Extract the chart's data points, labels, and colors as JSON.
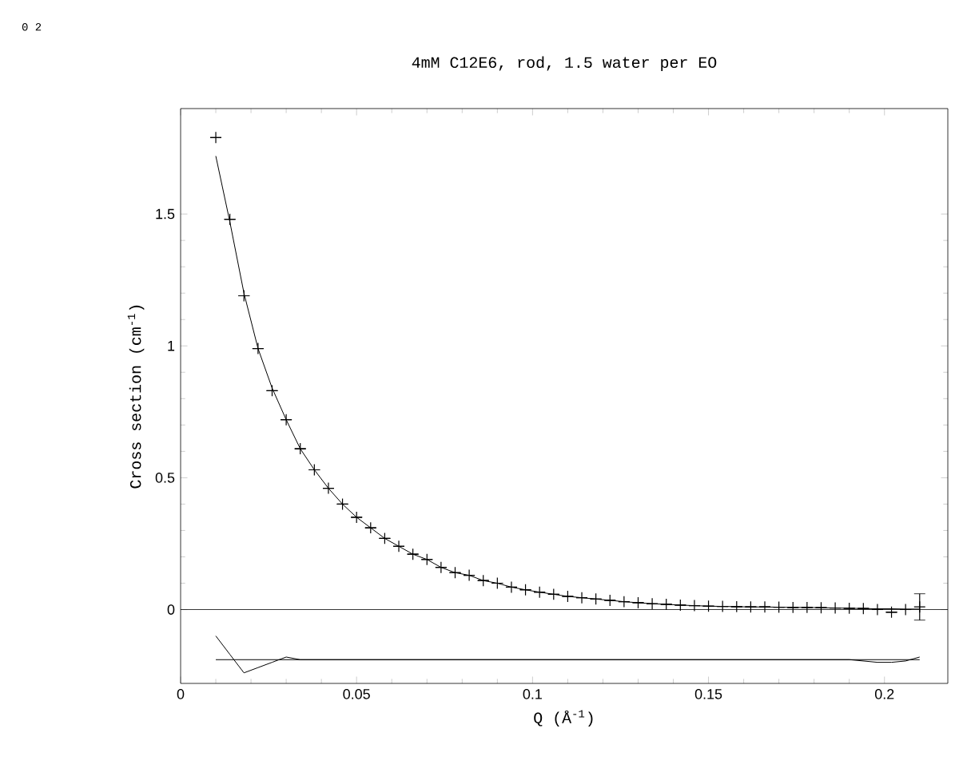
{
  "chart_data": {
    "type": "scatter",
    "title": "4mM C12E6, rod, 1.5 water per EO",
    "xlabel": "Q (Å$^{-1}$)",
    "ylabel": "Cross section (cm$^{-1}$)",
    "annotations": [
      "0  2"
    ],
    "xlim": [
      0,
      0.218
    ],
    "ylim": [
      -0.28,
      1.9
    ],
    "xticks": [
      0,
      0.05,
      0.1,
      0.15,
      0.2
    ],
    "yticks": [
      0,
      0.5,
      1,
      1.5
    ],
    "ref_lines": [
      {
        "axis": "y",
        "value": 0,
        "color": "#000000",
        "line_style": "solid"
      }
    ],
    "series": [
      {
        "marker": "cross",
        "color": "#000000",
        "x": [
          0.01,
          0.014,
          0.018,
          0.022,
          0.026,
          0.03,
          0.034,
          0.038,
          0.042,
          0.046,
          0.05,
          0.054,
          0.058,
          0.062,
          0.066,
          0.07,
          0.074,
          0.078,
          0.082,
          0.086,
          0.09,
          0.094,
          0.098,
          0.102,
          0.106,
          0.11,
          0.114,
          0.118,
          0.122,
          0.126,
          0.13,
          0.134,
          0.138,
          0.142,
          0.146,
          0.15,
          0.154,
          0.158,
          0.162,
          0.166,
          0.17,
          0.174,
          0.178,
          0.182,
          0.186,
          0.19,
          0.194,
          0.198,
          0.202,
          0.206,
          0.21
        ],
        "values": [
          1.79,
          1.48,
          1.19,
          0.99,
          0.83,
          0.72,
          0.61,
          0.53,
          0.46,
          0.4,
          0.35,
          0.31,
          0.27,
          0.24,
          0.21,
          0.19,
          0.16,
          0.14,
          0.13,
          0.11,
          0.1,
          0.085,
          0.075,
          0.066,
          0.058,
          0.05,
          0.045,
          0.04,
          0.035,
          0.03,
          0.026,
          0.022,
          0.02,
          0.017,
          0.015,
          0.013,
          0.012,
          0.011,
          0.01,
          0.01,
          0.009,
          0.008,
          0.008,
          0.007,
          0.006,
          0.005,
          0.004,
          0.0,
          -0.01,
          0.0,
          0.01
        ],
        "errors": [
          null,
          null,
          null,
          null,
          null,
          null,
          null,
          null,
          null,
          null,
          null,
          null,
          null,
          null,
          null,
          null,
          null,
          null,
          null,
          null,
          null,
          null,
          null,
          null,
          null,
          null,
          null,
          null,
          null,
          null,
          null,
          null,
          null,
          null,
          null,
          null,
          null,
          null,
          null,
          null,
          null,
          null,
          null,
          null,
          null,
          null,
          null,
          null,
          null,
          null,
          0.05
        ]
      },
      {
        "type": "line",
        "color": "#000000",
        "line_style": "solid",
        "x": [
          0.01,
          0.014,
          0.018,
          0.022,
          0.026,
          0.03,
          0.034,
          0.038,
          0.042,
          0.046,
          0.05,
          0.054,
          0.058,
          0.062,
          0.066,
          0.07,
          0.074,
          0.078,
          0.082,
          0.086,
          0.09,
          0.094,
          0.098,
          0.102,
          0.106,
          0.11,
          0.114,
          0.118,
          0.122,
          0.126,
          0.13,
          0.134,
          0.138,
          0.142,
          0.146,
          0.15,
          0.154,
          0.158,
          0.162,
          0.166,
          0.17,
          0.174,
          0.178,
          0.182,
          0.186,
          0.19,
          0.194,
          0.198,
          0.202,
          0.206,
          0.21
        ],
        "values": [
          1.72,
          1.47,
          1.2,
          0.99,
          0.84,
          0.72,
          0.61,
          0.53,
          0.46,
          0.4,
          0.35,
          0.31,
          0.27,
          0.24,
          0.21,
          0.19,
          0.16,
          0.14,
          0.13,
          0.11,
          0.1,
          0.085,
          0.075,
          0.066,
          0.058,
          0.05,
          0.045,
          0.04,
          0.035,
          0.03,
          0.026,
          0.022,
          0.02,
          0.017,
          0.015,
          0.013,
          0.012,
          0.011,
          0.01,
          0.01,
          0.009,
          0.008,
          0.008,
          0.007,
          0.006,
          0.005,
          0.004,
          0.003,
          0.003,
          0.002,
          0.002
        ]
      },
      {
        "type": "line",
        "color": "#000000",
        "line_style": "solid",
        "x": [
          0.01,
          0.21
        ],
        "values": [
          -0.19,
          -0.19
        ]
      },
      {
        "type": "line",
        "color": "#000000",
        "line_style": "solid",
        "x": [
          0.01,
          0.014,
          0.018,
          0.022,
          0.026,
          0.03,
          0.034,
          0.05,
          0.1,
          0.15,
          0.19,
          0.198,
          0.202,
          0.206,
          0.21
        ],
        "values": [
          -0.1,
          -0.17,
          -0.24,
          -0.22,
          -0.2,
          -0.18,
          -0.19,
          -0.19,
          -0.19,
          -0.19,
          -0.19,
          -0.2,
          -0.2,
          -0.195,
          -0.18
        ]
      }
    ]
  }
}
